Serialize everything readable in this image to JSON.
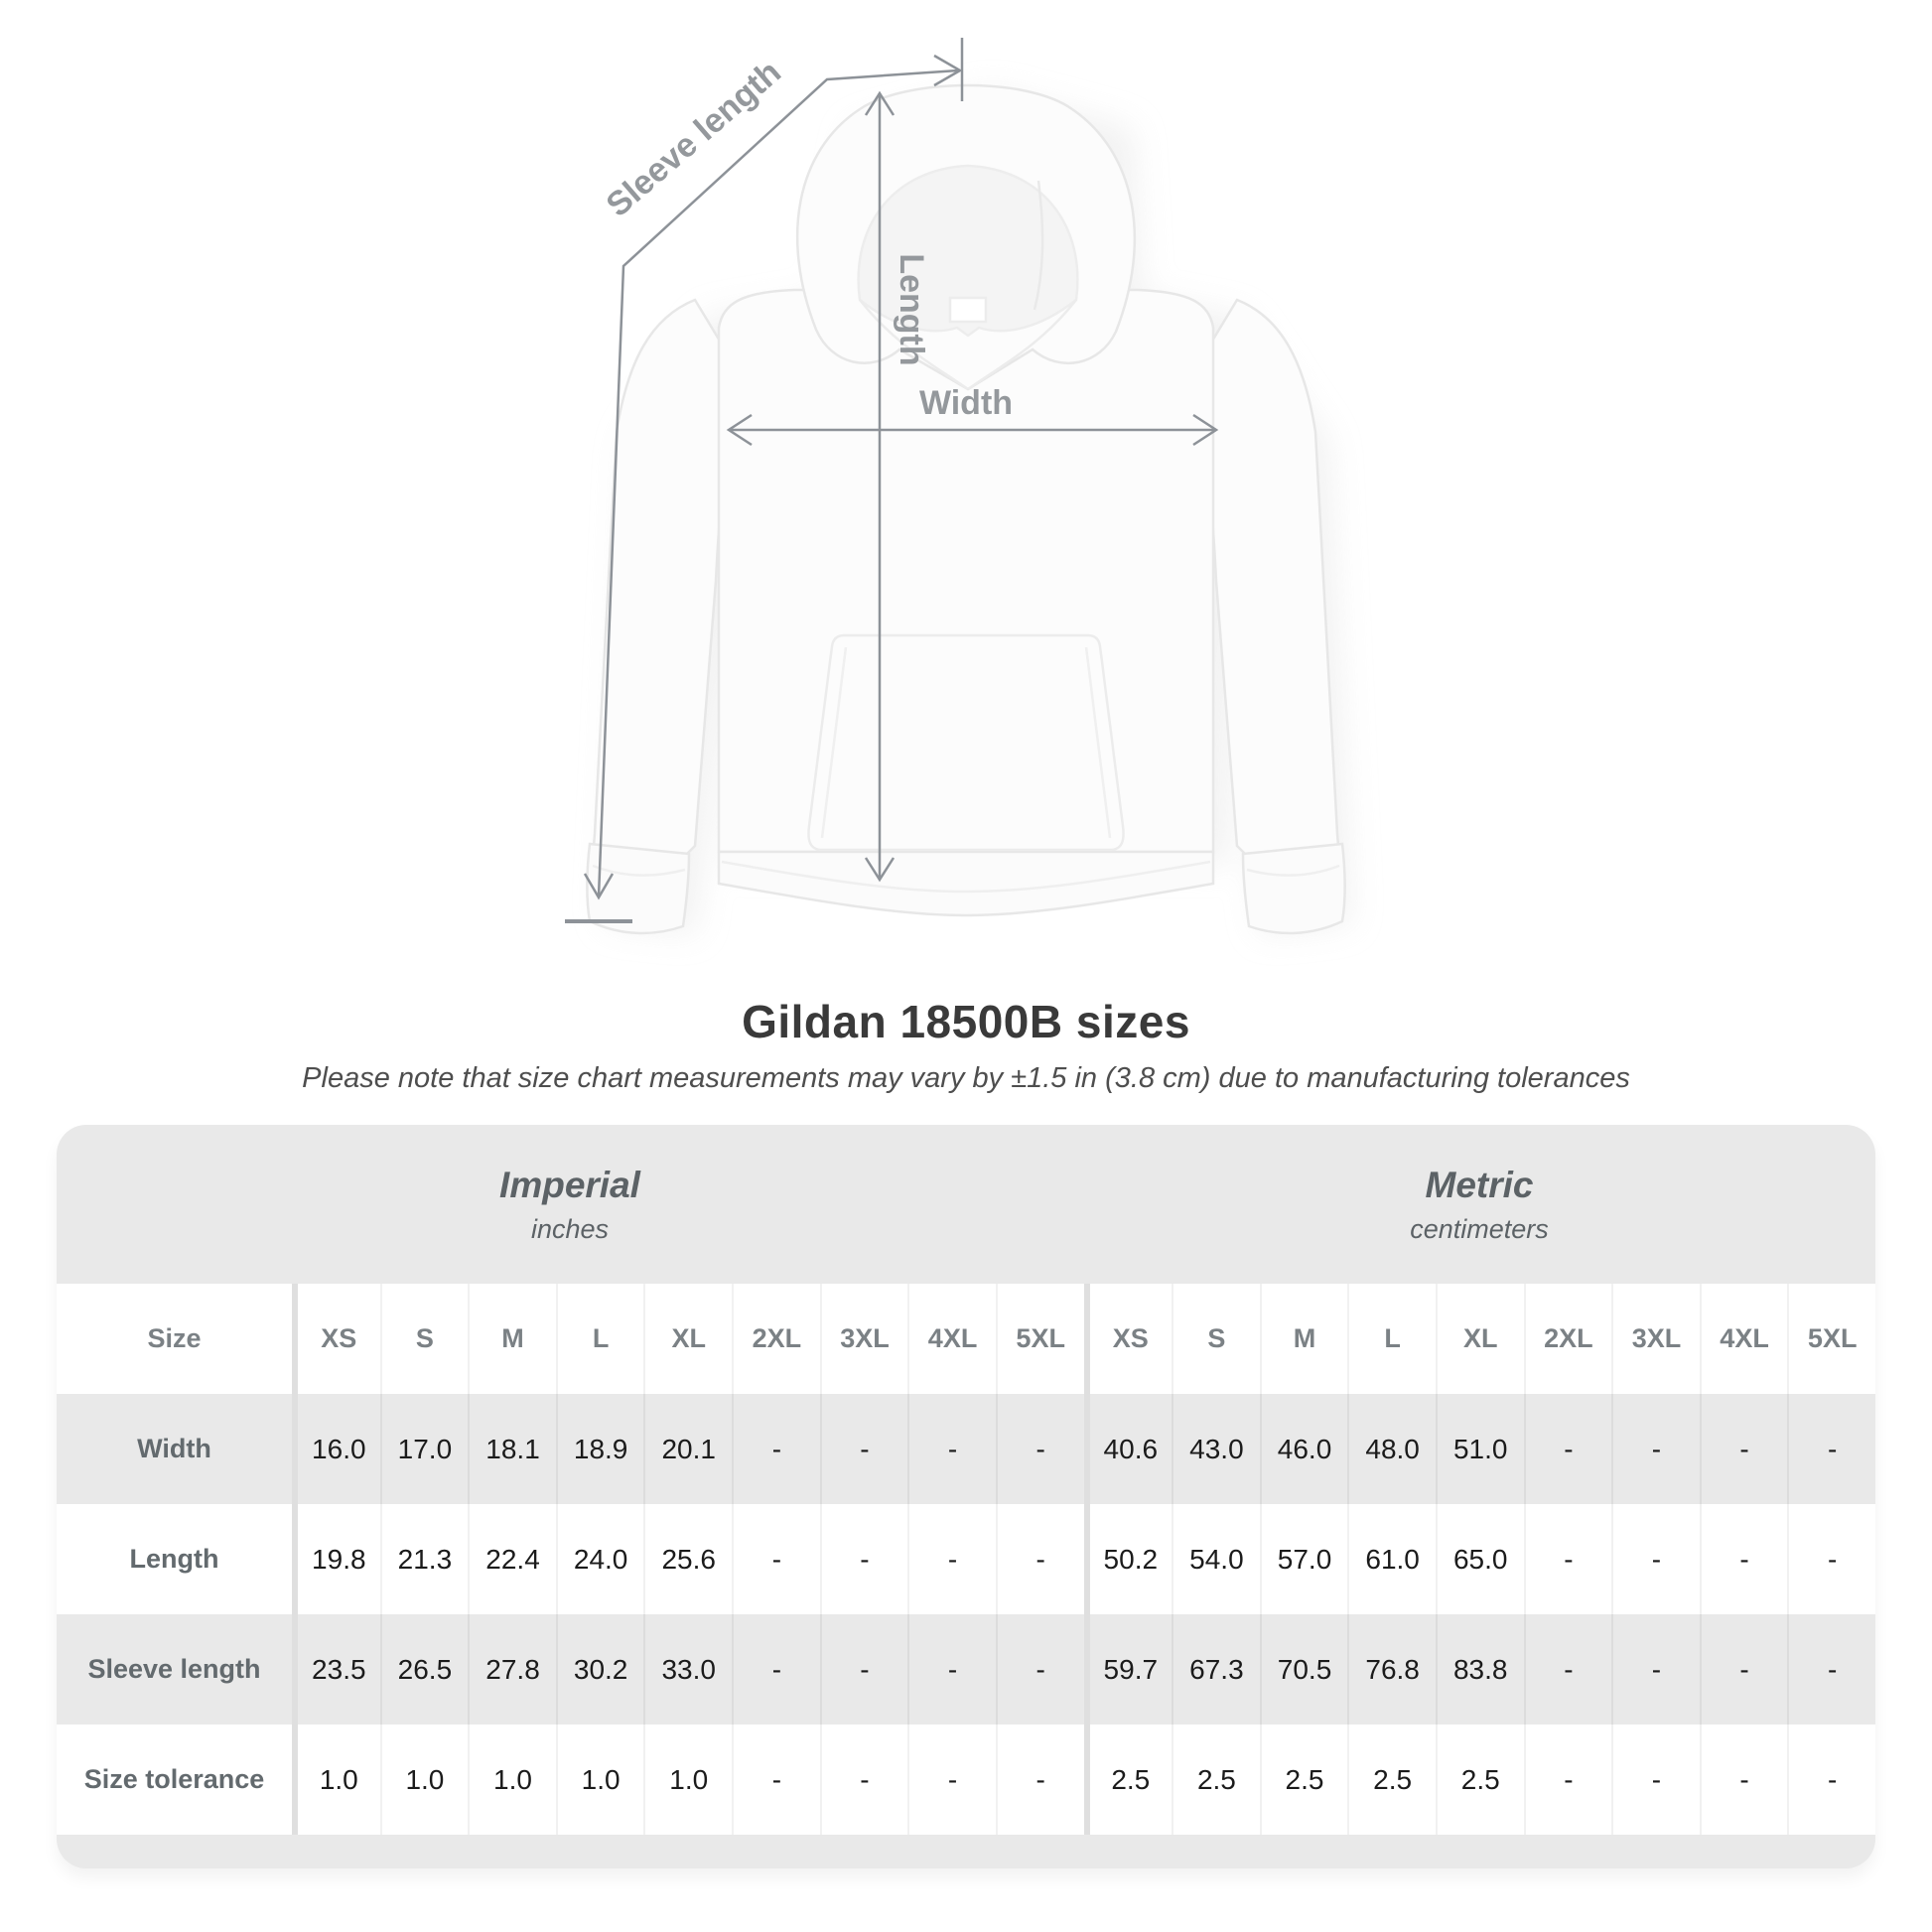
{
  "diagram": {
    "sleeve_length_label": "Sleeve length",
    "length_label": "Length",
    "width_label": "Width"
  },
  "title": "Gildan 18500B sizes",
  "subtitle": "Please note that size chart measurements may vary by ±1.5 in (3.8 cm) due to manufacturing tolerances",
  "table": {
    "size_label": "Size",
    "sizes": [
      "XS",
      "S",
      "M",
      "L",
      "XL",
      "2XL",
      "3XL",
      "4XL",
      "5XL"
    ],
    "unit_groups": [
      {
        "name": "Imperial",
        "unit": "inches"
      },
      {
        "name": "Metric",
        "unit": "centimeters"
      }
    ],
    "rows": [
      {
        "label": "Width",
        "imperial": [
          "16.0",
          "17.0",
          "18.1",
          "18.9",
          "20.1",
          "-",
          "-",
          "-",
          "-"
        ],
        "metric": [
          "40.6",
          "43.0",
          "46.0",
          "48.0",
          "51.0",
          "-",
          "-",
          "-",
          "-"
        ]
      },
      {
        "label": "Length",
        "imperial": [
          "19.8",
          "21.3",
          "22.4",
          "24.0",
          "25.6",
          "-",
          "-",
          "-",
          "-"
        ],
        "metric": [
          "50.2",
          "54.0",
          "57.0",
          "61.0",
          "65.0",
          "-",
          "-",
          "-",
          "-"
        ]
      },
      {
        "label": "Sleeve length",
        "imperial": [
          "23.5",
          "26.5",
          "27.8",
          "30.2",
          "33.0",
          "-",
          "-",
          "-",
          "-"
        ],
        "metric": [
          "59.7",
          "67.3",
          "70.5",
          "76.8",
          "83.8",
          "-",
          "-",
          "-",
          "-"
        ]
      },
      {
        "label": "Size tolerance",
        "imperial": [
          "1.0",
          "1.0",
          "1.0",
          "1.0",
          "1.0",
          "-",
          "-",
          "-",
          "-"
        ],
        "metric": [
          "2.5",
          "2.5",
          "2.5",
          "2.5",
          "2.5",
          "-",
          "-",
          "-",
          "-"
        ]
      }
    ]
  },
  "colors": {
    "arrow": "#8d9298",
    "label_grey": "#94989c",
    "card_grey": "#e9e9e9",
    "row_shade": "#e9e9e9",
    "value_text": "#1b1b1b",
    "header_text": "#7b8185",
    "row_label_text": "#636a6e",
    "title_text": "#3a3a3a"
  }
}
